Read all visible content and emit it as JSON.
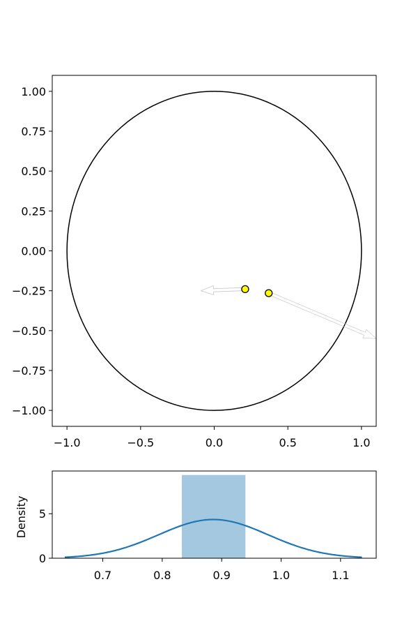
{
  "chart_data": [
    {
      "type": "scatter",
      "title": "",
      "xlabel": "",
      "ylabel": "",
      "xlim": [
        -1.1,
        1.1
      ],
      "ylim": [
        -1.1,
        1.1
      ],
      "x_ticks": [
        "−1.0",
        "−0.5",
        "0.0",
        "0.5",
        "1.0"
      ],
      "x_tick_values": [
        -1.0,
        -0.5,
        0.0,
        0.5,
        1.0
      ],
      "y_ticks": [
        "1.00",
        "0.75",
        "0.50",
        "0.25",
        "0.00",
        "−0.25",
        "−0.50",
        "−0.75",
        "−1.00"
      ],
      "y_tick_values": [
        1.0,
        0.75,
        0.5,
        0.25,
        0.0,
        -0.25,
        -0.5,
        -0.75,
        -1.0
      ],
      "grid": false,
      "shapes": [
        {
          "kind": "circle",
          "center": [
            0,
            0
          ],
          "radius": 1.0,
          "stroke_color": "#000000"
        }
      ],
      "points": [
        {
          "x": 0.21,
          "y": -0.24,
          "face_color": "#ffff00",
          "edge_color": "#000000"
        },
        {
          "x": 0.37,
          "y": -0.265,
          "face_color": "#ffff00",
          "edge_color": "#000000"
        }
      ],
      "arrows": [
        {
          "from": [
            0.37,
            -0.265
          ],
          "to": [
            1.1,
            -0.55
          ],
          "color": "#d0d0d0"
        },
        {
          "from": [
            0.2,
            -0.24
          ],
          "to": [
            -0.09,
            -0.25
          ],
          "color": "#c8c8c8"
        }
      ]
    },
    {
      "type": "bar",
      "title": "",
      "xlabel": "",
      "ylabel": "Density",
      "xlim": [
        0.615,
        1.16
      ],
      "ylim": [
        0,
        9.8
      ],
      "x_ticks": [
        "0.7",
        "0.8",
        "0.9",
        "1.0",
        "1.1"
      ],
      "x_tick_values": [
        0.7,
        0.8,
        0.9,
        1.0,
        1.1
      ],
      "y_ticks": [
        "0",
        "5"
      ],
      "y_tick_values": [
        0,
        5
      ],
      "grid": false,
      "histogram": {
        "bins": [
          {
            "x0": 0.833,
            "x1": 0.94,
            "value": 9.35
          }
        ],
        "color": "#a5c8e1"
      },
      "kde": {
        "color": "#1f77b4",
        "mean": 0.886,
        "sd": 0.092,
        "peak_density": 4.35,
        "x_range": [
          0.636,
          1.136
        ]
      }
    }
  ]
}
